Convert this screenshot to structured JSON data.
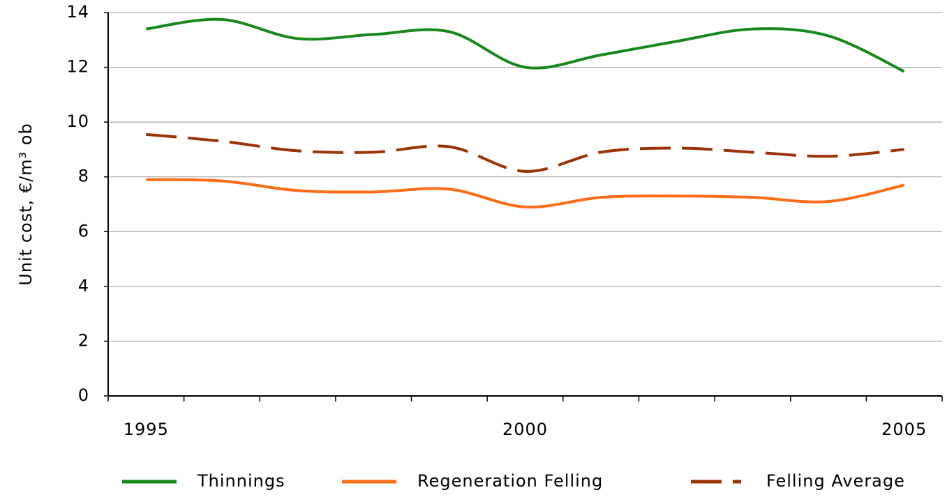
{
  "chart_data": {
    "type": "line",
    "ylabel": "Unit cost, €/m³ ob",
    "categories": [
      "1995",
      null,
      null,
      null,
      null,
      "2000",
      null,
      null,
      null,
      null,
      "2005"
    ],
    "series": [
      {
        "name": "Thinnings",
        "color": "#16891a",
        "dash": "solid",
        "values": [
          13.4,
          13.75,
          13.05,
          13.2,
          13.3,
          12.0,
          12.45,
          12.95,
          13.4,
          13.15,
          11.85
        ]
      },
      {
        "name": "Regeneration Felling",
        "color": "#ff6c17",
        "dash": "solid",
        "values": [
          7.9,
          7.85,
          7.5,
          7.45,
          7.55,
          6.9,
          7.25,
          7.3,
          7.25,
          7.1,
          7.7
        ]
      },
      {
        "name": "Felling Average",
        "color": "#9b3307",
        "dash": "dashed",
        "values": [
          9.55,
          9.3,
          8.95,
          8.9,
          9.1,
          8.2,
          8.9,
          9.05,
          8.9,
          8.75,
          9.0
        ]
      }
    ],
    "ylim": [
      0,
      14
    ],
    "yticks": [
      0,
      2,
      4,
      6,
      8,
      10,
      12,
      14
    ],
    "grid": true,
    "legend": "bottom"
  }
}
